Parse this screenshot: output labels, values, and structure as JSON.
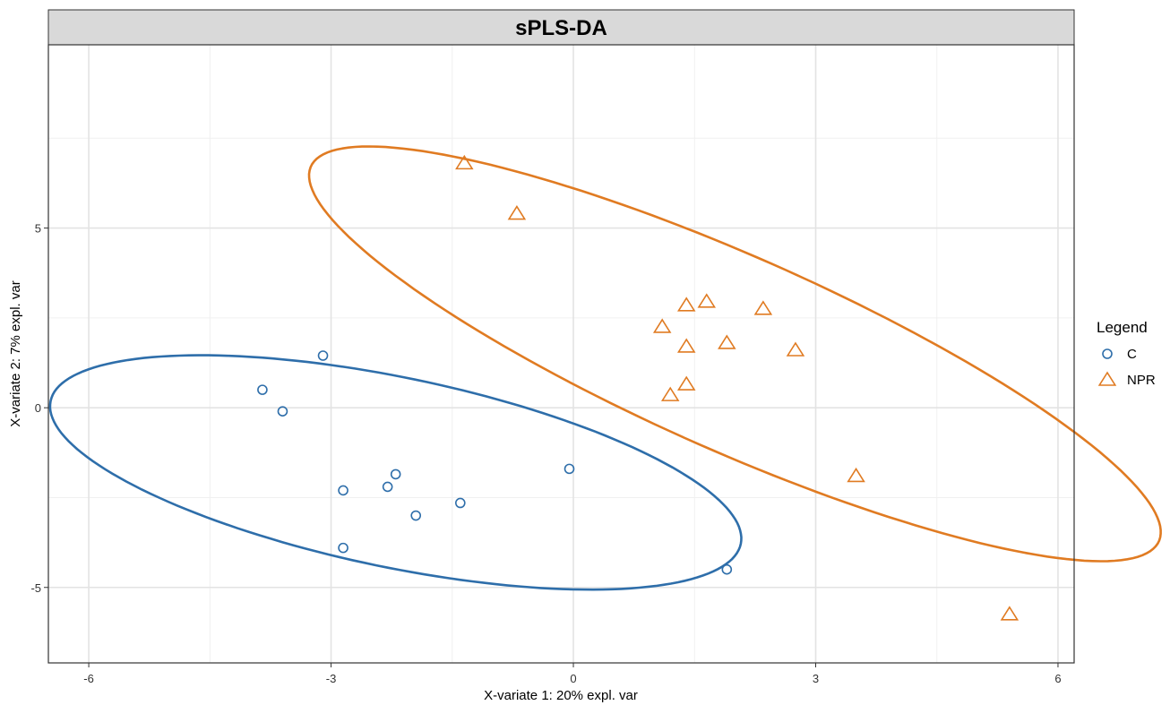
{
  "chart_data": {
    "type": "scatter",
    "title": "sPLS-DA",
    "xlabel": "X-variate 1: 20% expl. var",
    "ylabel": "X-variate 2: 7% expl. var",
    "xlim": [
      -6.5,
      6.2
    ],
    "ylim": [
      -7.1,
      10.1
    ],
    "x_major_ticks": [
      -6,
      -3,
      0,
      3,
      6
    ],
    "x_tick_labels": [
      "-6",
      "-3",
      "0",
      "3",
      "6"
    ],
    "y_major_ticks": [
      -5,
      0,
      5
    ],
    "y_tick_labels": [
      "-5",
      "0",
      "5"
    ],
    "x_minor_gridlines": [
      -4.5,
      -1.5,
      1.5,
      4.5
    ],
    "y_minor_gridlines": [
      -7.5,
      -2.5,
      2.5,
      7.5
    ],
    "grid": true,
    "legend": {
      "title": "Legend",
      "position": "right"
    },
    "series": [
      {
        "name": "C",
        "marker": "circle",
        "color": "#2e6eaa",
        "points": [
          {
            "x": -3.1,
            "y": 1.45
          },
          {
            "x": -3.85,
            "y": 0.5
          },
          {
            "x": -3.6,
            "y": -0.1
          },
          {
            "x": -2.2,
            "y": -1.85
          },
          {
            "x": -2.3,
            "y": -2.2
          },
          {
            "x": -2.85,
            "y": -2.3
          },
          {
            "x": -1.95,
            "y": -3.0
          },
          {
            "x": -1.4,
            "y": -2.65
          },
          {
            "x": -2.85,
            "y": -3.9
          },
          {
            "x": -0.05,
            "y": -1.7
          },
          {
            "x": 1.9,
            "y": -4.5
          }
        ],
        "ellipse": {
          "cx": -2.2,
          "cy": -1.8,
          "rx": 4.82,
          "ry": 2.39,
          "angle_deg": -32
        }
      },
      {
        "name": "NPR",
        "marker": "triangle",
        "color": "#e07b22",
        "points": [
          {
            "x": -1.35,
            "y": 6.8
          },
          {
            "x": -0.7,
            "y": 5.4
          },
          {
            "x": 1.4,
            "y": 2.85
          },
          {
            "x": 1.65,
            "y": 2.95
          },
          {
            "x": 2.35,
            "y": 2.75
          },
          {
            "x": 1.1,
            "y": 2.25
          },
          {
            "x": 1.4,
            "y": 1.7
          },
          {
            "x": 1.9,
            "y": 1.8
          },
          {
            "x": 2.75,
            "y": 1.6
          },
          {
            "x": 1.4,
            "y": 0.65
          },
          {
            "x": 1.2,
            "y": 0.35
          },
          {
            "x": 3.5,
            "y": -1.9
          },
          {
            "x": 5.4,
            "y": -5.75
          }
        ],
        "ellipse": {
          "cx": 2.0,
          "cy": 1.5,
          "rx": 7.54,
          "ry": 2.06,
          "angle_deg": -48
        }
      }
    ]
  }
}
